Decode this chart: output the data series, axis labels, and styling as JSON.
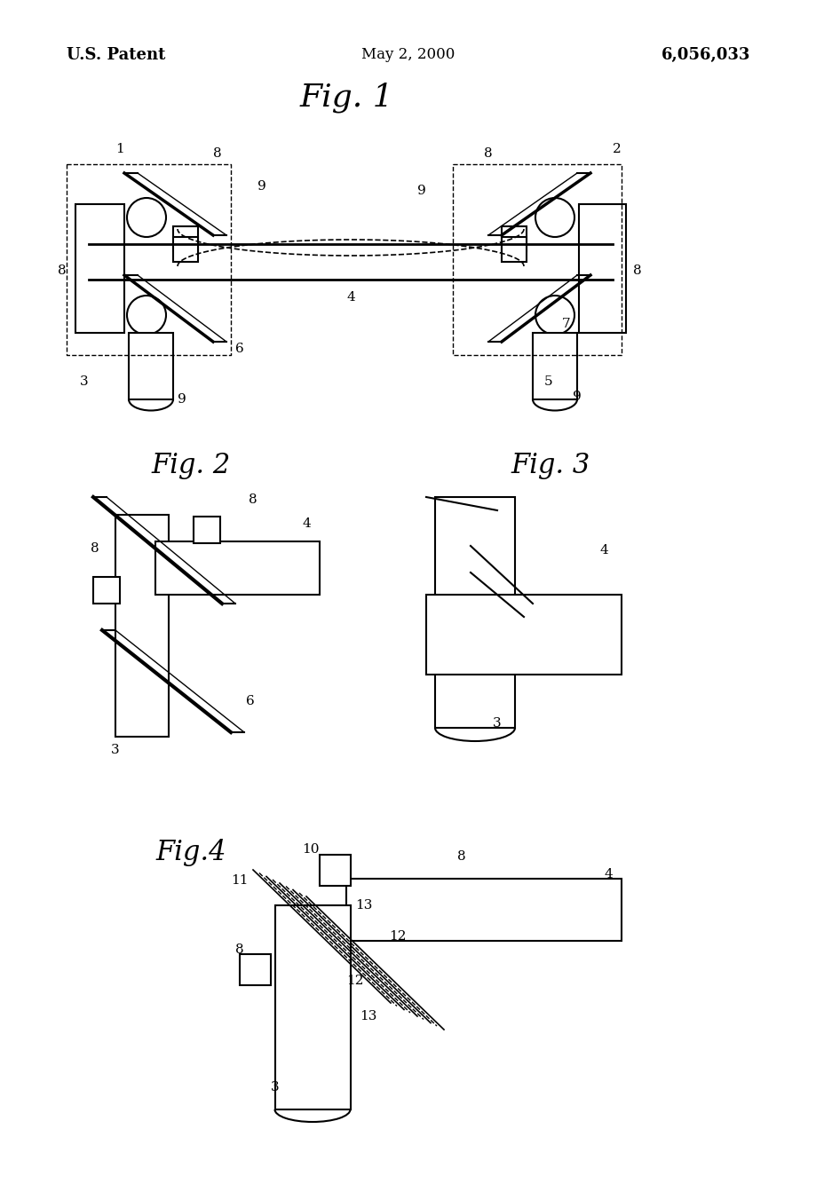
{
  "background_color": "#ffffff",
  "header_left": "U.S. Patent",
  "header_center": "May 2, 2000",
  "header_right": "6,056,033",
  "fig1_title": "Fig. 1",
  "fig2_title": "Fig. 2",
  "fig3_title": "Fig. 3",
  "fig4_title": "Fig.4",
  "line_color": "#000000",
  "line_width": 1.5,
  "dashed_color": "#000000"
}
